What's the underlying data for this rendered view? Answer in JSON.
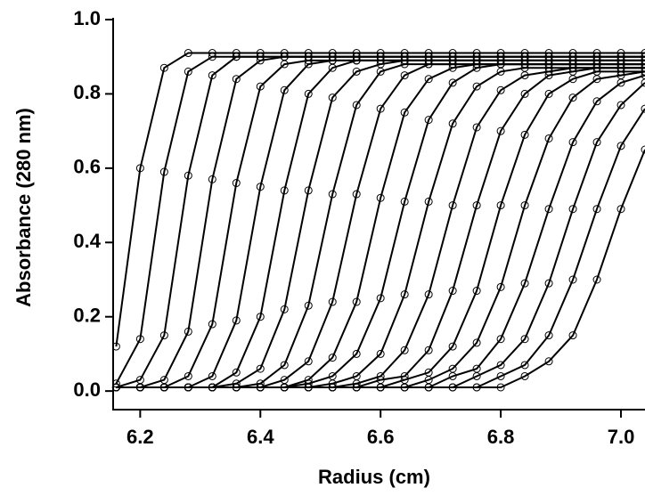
{
  "chart_data": {
    "type": "line",
    "marker": "open-circle",
    "color": "#000000",
    "xlabel": "Radius (cm)",
    "ylabel": "Absorbance (280 nm)",
    "x": [
      6.16,
      6.2,
      6.24,
      6.28,
      6.32,
      6.36,
      6.4,
      6.44,
      6.48,
      6.52,
      6.56,
      6.6,
      6.64,
      6.68,
      6.72,
      6.76,
      6.8,
      6.84,
      6.88,
      6.92,
      6.96,
      7.0,
      7.04
    ],
    "series": [
      {
        "values": [
          0.12,
          0.6,
          0.87,
          0.91,
          0.91,
          0.91,
          0.91,
          0.91,
          0.91,
          0.91,
          0.91,
          0.91,
          0.91,
          0.91,
          0.91,
          0.91,
          0.91,
          0.91,
          0.91,
          0.91,
          0.91,
          0.91,
          0.91
        ]
      },
      {
        "values": [
          0.02,
          0.14,
          0.59,
          0.86,
          0.9,
          0.9,
          0.9,
          0.9,
          0.9,
          0.9,
          0.9,
          0.9,
          0.9,
          0.9,
          0.9,
          0.9,
          0.9,
          0.9,
          0.9,
          0.9,
          0.9,
          0.9,
          0.9
        ]
      },
      {
        "values": [
          0.01,
          0.03,
          0.15,
          0.58,
          0.85,
          0.9,
          0.9,
          0.9,
          0.9,
          0.9,
          0.9,
          0.9,
          0.9,
          0.9,
          0.9,
          0.9,
          0.9,
          0.9,
          0.9,
          0.9,
          0.9,
          0.9,
          0.9
        ]
      },
      {
        "values": [
          0.01,
          0.01,
          0.03,
          0.16,
          0.57,
          0.84,
          0.89,
          0.9,
          0.9,
          0.9,
          0.9,
          0.9,
          0.9,
          0.9,
          0.9,
          0.9,
          0.9,
          0.9,
          0.9,
          0.9,
          0.9,
          0.9,
          0.9
        ]
      },
      {
        "values": [
          0.01,
          0.01,
          0.01,
          0.04,
          0.18,
          0.56,
          0.82,
          0.88,
          0.89,
          0.89,
          0.89,
          0.89,
          0.89,
          0.89,
          0.89,
          0.89,
          0.89,
          0.89,
          0.89,
          0.89,
          0.89,
          0.89,
          0.89
        ]
      },
      {
        "values": [
          0.01,
          0.01,
          0.01,
          0.01,
          0.04,
          0.19,
          0.55,
          0.81,
          0.88,
          0.89,
          0.89,
          0.89,
          0.89,
          0.89,
          0.89,
          0.89,
          0.89,
          0.89,
          0.89,
          0.89,
          0.89,
          0.89,
          0.89
        ]
      },
      {
        "values": [
          0.01,
          0.01,
          0.01,
          0.01,
          0.01,
          0.05,
          0.2,
          0.54,
          0.8,
          0.87,
          0.89,
          0.89,
          0.89,
          0.89,
          0.89,
          0.89,
          0.89,
          0.89,
          0.89,
          0.89,
          0.89,
          0.89,
          0.89
        ]
      },
      {
        "values": [
          0.01,
          0.01,
          0.01,
          0.01,
          0.01,
          0.02,
          0.06,
          0.22,
          0.54,
          0.79,
          0.86,
          0.88,
          0.89,
          0.89,
          0.89,
          0.89,
          0.89,
          0.89,
          0.89,
          0.89,
          0.89,
          0.89,
          0.89
        ]
      },
      {
        "values": [
          0.01,
          0.01,
          0.01,
          0.01,
          0.01,
          0.01,
          0.02,
          0.07,
          0.23,
          0.53,
          0.77,
          0.86,
          0.88,
          0.88,
          0.88,
          0.88,
          0.88,
          0.88,
          0.88,
          0.88,
          0.88,
          0.88,
          0.88
        ]
      },
      {
        "values": [
          0.01,
          0.01,
          0.01,
          0.01,
          0.01,
          0.01,
          0.01,
          0.03,
          0.08,
          0.24,
          0.53,
          0.76,
          0.85,
          0.88,
          0.88,
          0.88,
          0.88,
          0.88,
          0.88,
          0.88,
          0.88,
          0.88,
          0.88
        ]
      },
      {
        "values": [
          0.01,
          0.01,
          0.01,
          0.01,
          0.01,
          0.01,
          0.01,
          0.01,
          0.03,
          0.09,
          0.24,
          0.52,
          0.75,
          0.84,
          0.87,
          0.88,
          0.88,
          0.88,
          0.88,
          0.88,
          0.88,
          0.88,
          0.88
        ]
      },
      {
        "values": [
          0.01,
          0.01,
          0.01,
          0.01,
          0.01,
          0.01,
          0.01,
          0.01,
          0.02,
          0.04,
          0.1,
          0.25,
          0.51,
          0.73,
          0.83,
          0.87,
          0.88,
          0.88,
          0.88,
          0.88,
          0.88,
          0.88,
          0.88
        ]
      },
      {
        "values": [
          0.01,
          0.01,
          0.01,
          0.01,
          0.01,
          0.01,
          0.01,
          0.01,
          0.01,
          0.02,
          0.04,
          0.1,
          0.26,
          0.51,
          0.72,
          0.82,
          0.86,
          0.87,
          0.87,
          0.87,
          0.87,
          0.87,
          0.87
        ]
      },
      {
        "values": [
          0.01,
          0.01,
          0.01,
          0.01,
          0.01,
          0.01,
          0.01,
          0.01,
          0.01,
          0.01,
          0.02,
          0.04,
          0.11,
          0.26,
          0.5,
          0.71,
          0.81,
          0.85,
          0.86,
          0.87,
          0.87,
          0.87,
          0.87
        ]
      },
      {
        "values": [
          0.01,
          0.01,
          0.01,
          0.01,
          0.01,
          0.01,
          0.01,
          0.01,
          0.01,
          0.01,
          0.01,
          0.03,
          0.04,
          0.11,
          0.27,
          0.5,
          0.7,
          0.8,
          0.85,
          0.86,
          0.87,
          0.87,
          0.87
        ]
      },
      {
        "values": [
          0.01,
          0.01,
          0.01,
          0.01,
          0.01,
          0.01,
          0.01,
          0.01,
          0.01,
          0.01,
          0.01,
          0.01,
          0.03,
          0.05,
          0.12,
          0.27,
          0.5,
          0.69,
          0.8,
          0.84,
          0.86,
          0.86,
          0.86
        ]
      },
      {
        "values": [
          0.01,
          0.01,
          0.01,
          0.01,
          0.01,
          0.01,
          0.01,
          0.01,
          0.01,
          0.01,
          0.01,
          0.01,
          0.01,
          0.03,
          0.06,
          0.13,
          0.28,
          0.5,
          0.68,
          0.79,
          0.84,
          0.85,
          0.86
        ]
      },
      {
        "values": [
          0.01,
          0.01,
          0.01,
          0.01,
          0.01,
          0.01,
          0.01,
          0.01,
          0.01,
          0.01,
          0.01,
          0.01,
          0.01,
          0.01,
          0.04,
          0.06,
          0.14,
          0.29,
          0.49,
          0.67,
          0.78,
          0.83,
          0.85
        ]
      },
      {
        "values": [
          0.01,
          0.01,
          0.01,
          0.01,
          0.01,
          0.01,
          0.01,
          0.01,
          0.01,
          0.01,
          0.01,
          0.01,
          0.01,
          0.01,
          0.01,
          0.04,
          0.07,
          0.14,
          0.29,
          0.49,
          0.67,
          0.77,
          0.83
        ]
      },
      {
        "values": [
          0.01,
          0.01,
          0.01,
          0.01,
          0.01,
          0.01,
          0.01,
          0.01,
          0.01,
          0.01,
          0.01,
          0.01,
          0.01,
          0.01,
          0.01,
          0.01,
          0.04,
          0.07,
          0.15,
          0.3,
          0.49,
          0.66,
          0.76
        ]
      },
      {
        "values": [
          0.01,
          0.01,
          0.01,
          0.01,
          0.01,
          0.01,
          0.01,
          0.01,
          0.01,
          0.01,
          0.01,
          0.01,
          0.01,
          0.01,
          0.01,
          0.01,
          0.01,
          0.04,
          0.08,
          0.15,
          0.3,
          0.49,
          0.65
        ]
      }
    ],
    "xlim": [
      6.155,
      7.04
    ],
    "ylim": [
      -0.05,
      1.0
    ],
    "xticks": [
      6.2,
      6.4,
      6.6,
      6.8,
      {
        "value": 7,
        "label": "7.0"
      }
    ],
    "yticks": [
      {
        "value": 0,
        "label": "0.0"
      },
      0.2,
      0.4,
      0.6,
      0.8,
      {
        "value": 1,
        "label": "1.0"
      }
    ]
  }
}
